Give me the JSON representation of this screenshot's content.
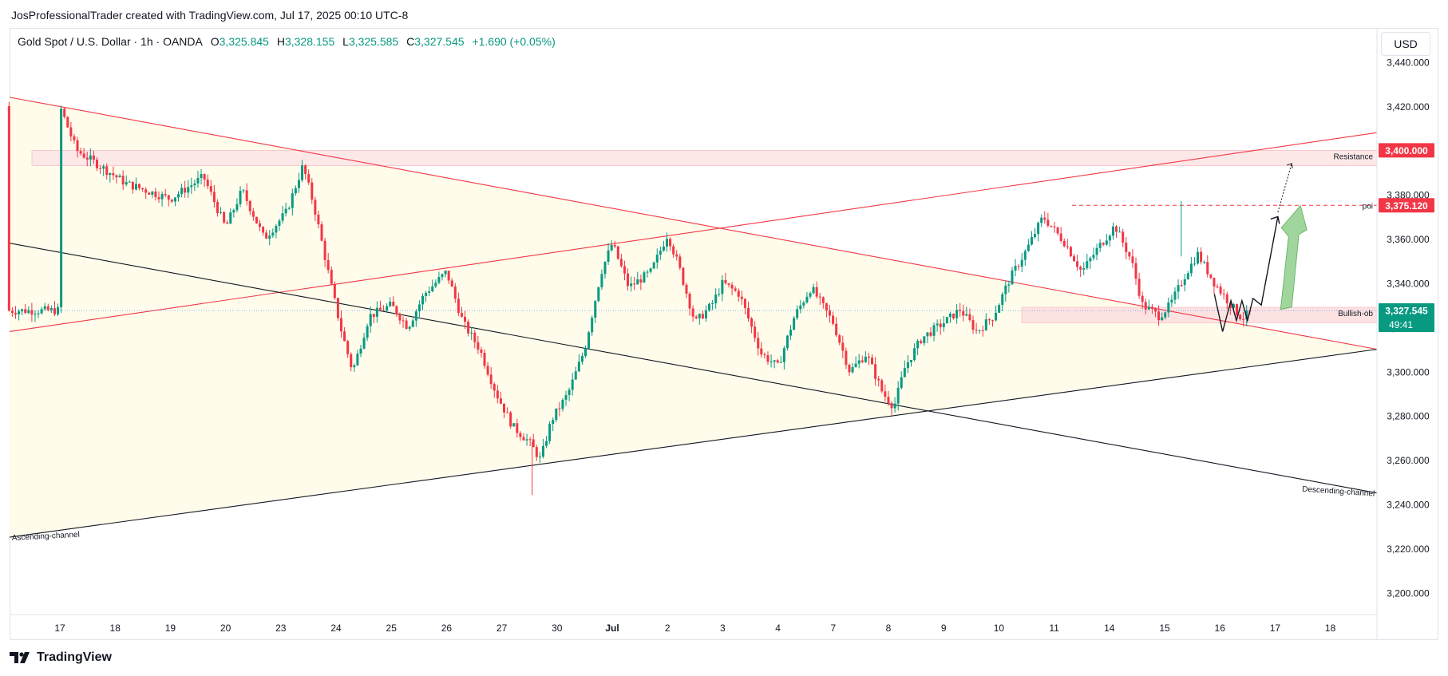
{
  "header": {
    "credit": "JosProfessionalTrader created with TradingView.com, Jul 17, 2025 00:10 UTC-8"
  },
  "legend": {
    "symbol": "Gold Spot / U.S. Dollar · 1h · OANDA",
    "open_label": "O",
    "open": "3,325.845",
    "high_label": "H",
    "high": "3,328.155",
    "low_label": "L",
    "low": "3,325.585",
    "close_label": "C",
    "close": "3,327.545",
    "change": "+1.690 (+0.05%)"
  },
  "currency_button": "USD",
  "footer": {
    "brand": "TradingView"
  },
  "colors": {
    "up": "#089981",
    "down": "#f23645",
    "teal_label": "#089981",
    "red_label": "#f23645",
    "channel_fill": "#fffbe6",
    "zone_fill": "#fde8e8"
  },
  "chart_data": {
    "type": "candlestick",
    "symbol": "XAUUSD",
    "timeframe": "1h",
    "ylim": [
      3190,
      3455
    ],
    "y_ticks": [
      3200,
      3220,
      3240,
      3260,
      3280,
      3300,
      3320,
      3340,
      3360,
      3380,
      3400,
      3420,
      3440
    ],
    "y_tick_labels": [
      "3,200.000",
      "3,220.000",
      "3,240.000",
      "3,260.000",
      "3,280.000",
      "3,300.000",
      "3,320.000",
      "3,340.000",
      "3,360.000",
      "3,380.000",
      "3,400.000",
      "3,420.000",
      "3,440.000"
    ],
    "x_labels": [
      "17",
      "18",
      "19",
      "20",
      "23",
      "24",
      "25",
      "26",
      "27",
      "30",
      "Jul",
      "2",
      "3",
      "4",
      "7",
      "8",
      "9",
      "10",
      "11",
      "14",
      "15",
      "16",
      "17",
      "18"
    ],
    "price_path": [
      [
        0,
        3420
      ],
      [
        0.3,
        3400
      ],
      [
        1.2,
        3385
      ],
      [
        2.0,
        3378
      ],
      [
        2.6,
        3388
      ],
      [
        3.0,
        3365
      ],
      [
        3.3,
        3382
      ],
      [
        3.7,
        3360
      ],
      [
        4.1,
        3372
      ],
      [
        4.4,
        3393
      ],
      [
        4.6,
        3375
      ],
      [
        4.9,
        3340
      ],
      [
        5.1,
        3318
      ],
      [
        5.3,
        3300
      ],
      [
        5.6,
        3325
      ],
      [
        6.0,
        3330
      ],
      [
        6.3,
        3320
      ],
      [
        6.6,
        3335
      ],
      [
        7.0,
        3345
      ],
      [
        7.3,
        3322
      ],
      [
        7.6,
        3310
      ],
      [
        7.9,
        3290
      ],
      [
        8.2,
        3275
      ],
      [
        8.5,
        3268
      ],
      [
        8.7,
        3260
      ],
      [
        8.9,
        3278
      ],
      [
        9.2,
        3290
      ],
      [
        9.5,
        3310
      ],
      [
        9.8,
        3345
      ],
      [
        10.0,
        3358
      ],
      [
        10.3,
        3338
      ],
      [
        10.7,
        3345
      ],
      [
        11.0,
        3362
      ],
      [
        11.2,
        3348
      ],
      [
        11.5,
        3322
      ],
      [
        11.8,
        3330
      ],
      [
        12.0,
        3340
      ],
      [
        12.3,
        3335
      ],
      [
        12.7,
        3308
      ],
      [
        13.0,
        3302
      ],
      [
        13.3,
        3325
      ],
      [
        13.6,
        3338
      ],
      [
        14.0,
        3322
      ],
      [
        14.3,
        3300
      ],
      [
        14.6,
        3308
      ],
      [
        14.9,
        3290
      ],
      [
        15.1,
        3284
      ],
      [
        15.3,
        3302
      ],
      [
        15.6,
        3315
      ],
      [
        16.0,
        3322
      ],
      [
        16.3,
        3328
      ],
      [
        16.6,
        3318
      ],
      [
        16.9,
        3325
      ],
      [
        17.2,
        3342
      ],
      [
        17.5,
        3355
      ],
      [
        17.8,
        3370
      ],
      [
        18.2,
        3358
      ],
      [
        18.5,
        3345
      ],
      [
        18.8,
        3356
      ],
      [
        19.1,
        3366
      ],
      [
        19.4,
        3350
      ],
      [
        19.6,
        3330
      ],
      [
        19.9,
        3325
      ],
      [
        20.1,
        3330
      ],
      [
        20.4,
        3345
      ],
      [
        20.6,
        3353
      ],
      [
        20.9,
        3340
      ],
      [
        21.2,
        3330
      ],
      [
        21.4,
        3324
      ],
      [
        21.6,
        3327.5
      ]
    ],
    "annotations": {
      "resistance_label": "Resistance",
      "resistance_price": "3,400.000",
      "resistance_zone": [
        3393,
        3400
      ],
      "poi_label": "poi",
      "poi_price": "3,375.120",
      "poi_level": 3375.12,
      "bullish_ob_label": "Bullish-ob",
      "bullish_ob_zone": [
        3322,
        3329
      ],
      "last_price_label": "3,327.545",
      "countdown": "49:41",
      "ascending_channel_label": "Ascending-channel",
      "descending_channel_label": "Descending-channel"
    }
  }
}
